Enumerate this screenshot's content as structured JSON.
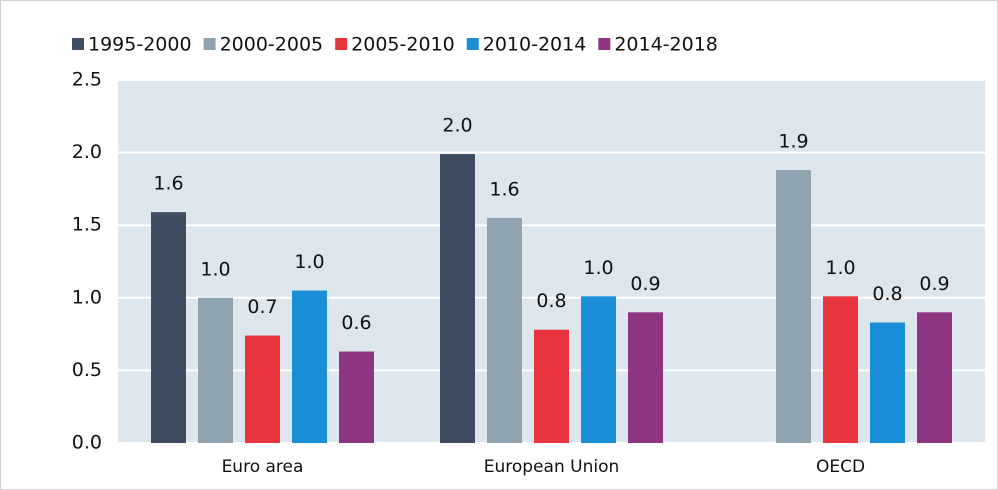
{
  "chart_data": {
    "type": "bar",
    "categories": [
      "Euro area",
      "European Union",
      "OECD"
    ],
    "series": [
      {
        "name": "1995-2000",
        "color": "#3f4d63",
        "values": [
          1.59,
          1.99,
          null
        ],
        "value_labels": [
          "1.6",
          "2.0",
          null
        ]
      },
      {
        "name": "2000-2005",
        "color": "#8fa3b1",
        "values": [
          1.0,
          1.55,
          1.88
        ],
        "value_labels": [
          "1.0",
          "1.6",
          "1.9"
        ]
      },
      {
        "name": "2005-2010",
        "color": "#e8343d",
        "values": [
          0.74,
          0.78,
          1.01
        ],
        "value_labels": [
          "0.7",
          "0.8",
          "1.0"
        ]
      },
      {
        "name": "2010-2014",
        "color": "#1a8fd8",
        "values": [
          1.05,
          1.01,
          0.83
        ],
        "value_labels": [
          "1.0",
          "1.0",
          "0.8"
        ]
      },
      {
        "name": "2014-2018",
        "color": "#8e3582",
        "values": [
          0.63,
          0.9,
          0.9
        ],
        "value_labels": [
          "0.6",
          "0.9",
          "0.9"
        ]
      }
    ],
    "ylim": [
      0,
      2.5
    ],
    "yticks": [
      {
        "value": 0,
        "label": "0.0"
      },
      0.5,
      {
        "value": 1,
        "label": "1.0"
      },
      1.5,
      {
        "value": 2,
        "label": "2.0"
      },
      2.5
    ],
    "grid": true,
    "legend": "top",
    "plot_background": "#dde6ed"
  }
}
